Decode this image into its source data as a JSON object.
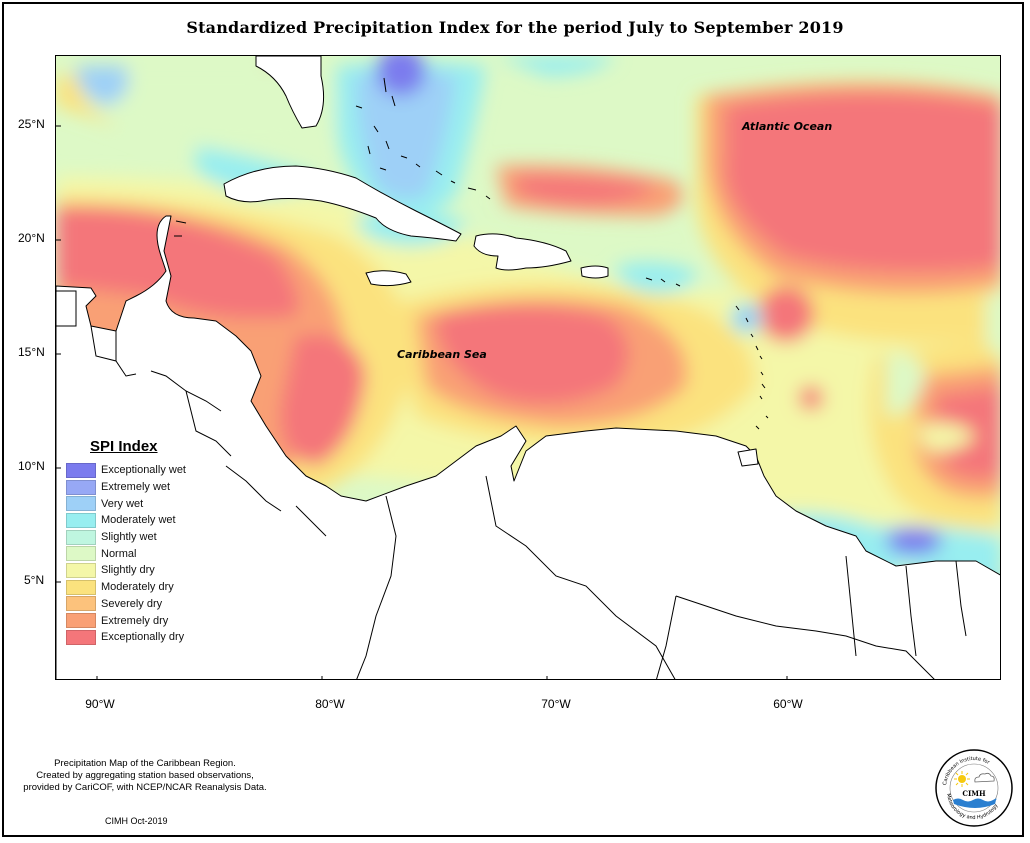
{
  "title": "Standardized Precipitation Index for the period July to September 2019",
  "map": {
    "y_ticks": [
      {
        "label": "25°N",
        "lat": 25
      },
      {
        "label": "20°N",
        "lat": 20
      },
      {
        "label": "15°N",
        "lat": 15
      },
      {
        "label": "10°N",
        "lat": 10
      },
      {
        "label": "5°N",
        "lat": 5
      }
    ],
    "x_ticks": [
      {
        "label": "90°W",
        "lon": -90
      },
      {
        "label": "80°W",
        "lon": -80
      },
      {
        "label": "70°W",
        "lon": -70
      },
      {
        "label": "60°W",
        "lon": -60
      }
    ],
    "region_labels": {
      "atlantic": "Atlantic Ocean",
      "caribbean": "Caribbean Sea"
    }
  },
  "legend": {
    "title": "SPI Index",
    "items": [
      {
        "label": "Exceptionally wet",
        "color": "#7b7bee"
      },
      {
        "label": "Extremely wet",
        "color": "#97a8f5"
      },
      {
        "label": "Very wet",
        "color": "#9ed0f7"
      },
      {
        "label": "Moderately wet",
        "color": "#98eef0"
      },
      {
        "label": "Slightly wet",
        "color": "#bff6e0"
      },
      {
        "label": "Normal",
        "color": "#ddf9c6"
      },
      {
        "label": "Slightly dry",
        "color": "#f4f7a8"
      },
      {
        "label": "Moderately dry",
        "color": "#fbe27e"
      },
      {
        "label": "Severely dry",
        "color": "#fcc27c"
      },
      {
        "label": "Extremely dry",
        "color": "#f9a075"
      },
      {
        "label": "Exceptionally dry",
        "color": "#f4767a"
      }
    ]
  },
  "footnote": {
    "line1": "Precipitation Map of the Caribbean Region.",
    "line2": "Created by aggregating station based observations,",
    "line3": "provided by CariCOF, with NCEP/NCAR Reanalysis Data."
  },
  "credit": "CIMH Oct-2019",
  "logo": {
    "name": "CIMH",
    "arc_text": "Caribbean Institute for Meteorology and Hydrology"
  }
}
